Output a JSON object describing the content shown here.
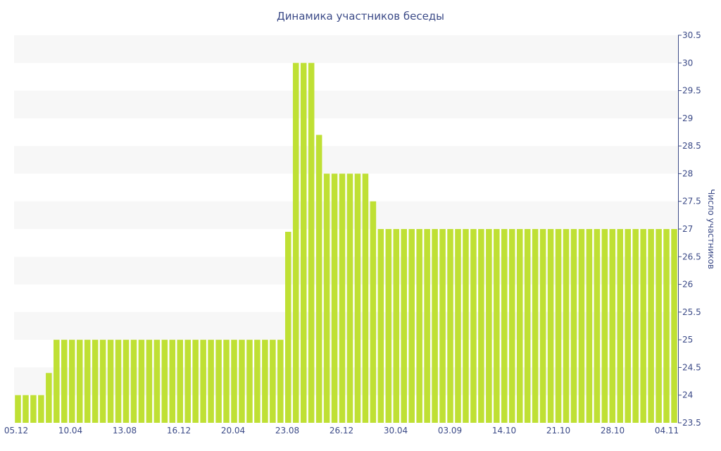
{
  "chart_data": {
    "type": "bar",
    "title": "Динамика участников беседы",
    "xlabel": "",
    "ylabel": "Число участников",
    "ylim": [
      23.5,
      30.5
    ],
    "y_ticks": [
      "23.5",
      "24",
      "24.5",
      "25",
      "25.5",
      "26",
      "26.5",
      "27",
      "27.5",
      "28",
      "28.5",
      "29",
      "29.5",
      "30",
      "30.5"
    ],
    "x_tick_labels": [
      "05.12",
      "10.04",
      "13.08",
      "16.12",
      "20.04",
      "23.08",
      "26.12",
      "30.04",
      "03.09",
      "14.10",
      "21.10",
      "28.10",
      "04.11"
    ],
    "y_axis_side": "right",
    "grid": "alternating horizontal bands",
    "series": [
      {
        "values": [
          24,
          24,
          24,
          24,
          24.4,
          25,
          25,
          25,
          25,
          25,
          25,
          25,
          25,
          25,
          25,
          25,
          25,
          25,
          25,
          25,
          25,
          25,
          25,
          25,
          25,
          25,
          25,
          25,
          25,
          25,
          25,
          25,
          25,
          25,
          25,
          26.95,
          30,
          30,
          30,
          28.7,
          28,
          28,
          28,
          28,
          28,
          28,
          27.5,
          27,
          27,
          27,
          27,
          27,
          27,
          27,
          27,
          27,
          27,
          27,
          27,
          27,
          27,
          27,
          27,
          27,
          27,
          27,
          27,
          27,
          27,
          27,
          27,
          27,
          27,
          27,
          27,
          27,
          27,
          27,
          27,
          27,
          27,
          27,
          27,
          27,
          27,
          27
        ]
      }
    ],
    "colors": {
      "bar": "#bfe034",
      "band": "#f7f7f7",
      "text": "#3b4a87",
      "axis": "#3b4a87"
    }
  }
}
